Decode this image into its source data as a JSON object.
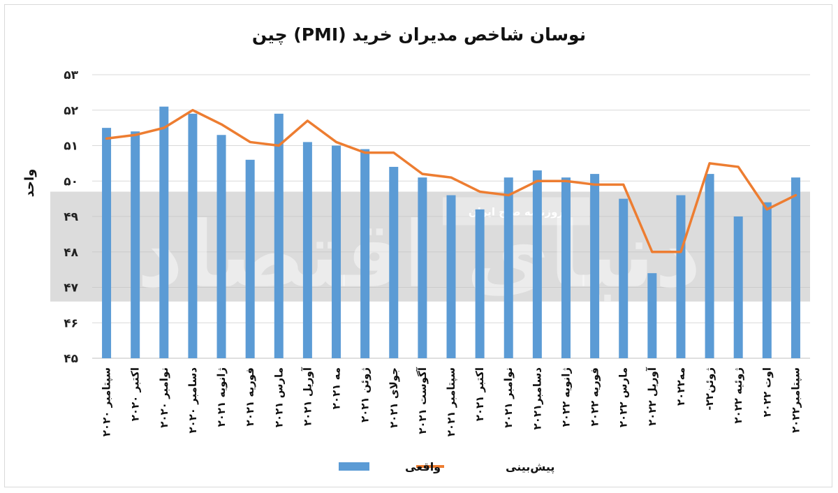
{
  "chart_data": {
    "type": "bar",
    "title": "نوسان شاخص مدیران خرید (PMI) چین",
    "xlabel": "",
    "ylabel": "واحد",
    "ylim": [
      45,
      53
    ],
    "yticks": [
      "۴۵",
      "۴۶",
      "۴۷",
      "۴۸",
      "۴۹",
      "۵۰",
      "۵۱",
      "۵۲",
      "۵۳"
    ],
    "ytick_values": [
      45,
      46,
      47,
      48,
      49,
      50,
      51,
      52,
      53
    ],
    "categories": [
      "سپتامبر ۲۰۲۰",
      "اکتبر ۲۰۲۰",
      "نوامبر ۲۰۲۰",
      "دسامبر ۲۰۲۰",
      "ژانویه ۲۰۲۱",
      "فوریه ۲۰۲۱",
      "مارس ۲۰۲۱",
      "آوریل ۲۰۲۱",
      "مه ۲۰۲۱",
      "ژوئن ۲۰۲۱",
      "جولای ۲۰۲۱",
      "آگوست ۲۰۲۱",
      "سپتامبر ۲۰۲۱",
      "اکتبر ۲۰۲۱",
      "نوامبر ۲۰۲۱",
      "دسامبر۲۰۲۱",
      "ژانویه ۲۰۲۲",
      "فوریه ۲۰۲۲",
      "مارس ۲۰۲۲",
      "آوریل ۲۰۲۲",
      "مه۲۰۲۲",
      "ژوئن۲۲-",
      "ژوئیه ۲۰۲۲",
      "اوت ۲۰۲۲",
      "سپتامبر۲۰۲۲"
    ],
    "series": [
      {
        "name": "واقعی",
        "type": "bar",
        "color": "#5b9bd5",
        "values": [
          51.5,
          51.4,
          52.1,
          51.9,
          51.3,
          50.6,
          51.9,
          51.1,
          51.0,
          50.9,
          50.4,
          50.1,
          49.6,
          49.2,
          50.1,
          50.3,
          50.1,
          50.2,
          49.5,
          47.4,
          49.6,
          50.2,
          49.0,
          49.4,
          50.1
        ]
      },
      {
        "name": "پیش‌بینی",
        "type": "line",
        "color": "#ed7d31",
        "values": [
          51.2,
          51.3,
          51.5,
          52.0,
          51.6,
          51.1,
          51.0,
          51.7,
          51.1,
          50.8,
          50.8,
          50.2,
          50.1,
          49.7,
          49.6,
          50.0,
          50.0,
          49.9,
          49.9,
          48.0,
          48.0,
          50.5,
          50.4,
          49.2,
          49.6
        ]
      }
    ],
    "legend": {
      "placement": "bottom",
      "items": [
        {
          "label": "پیش‌بینی",
          "kind": "line",
          "color": "#ed7d31"
        },
        {
          "label": "واقعی",
          "kind": "bar",
          "color": "#5b9bd5"
        }
      ]
    },
    "grid": true,
    "watermark": {
      "logo_text": "دنیای اقتصاد",
      "banner_text": "روزنامه صبح ایران",
      "band_range": [
        46.6,
        49.7
      ]
    }
  }
}
